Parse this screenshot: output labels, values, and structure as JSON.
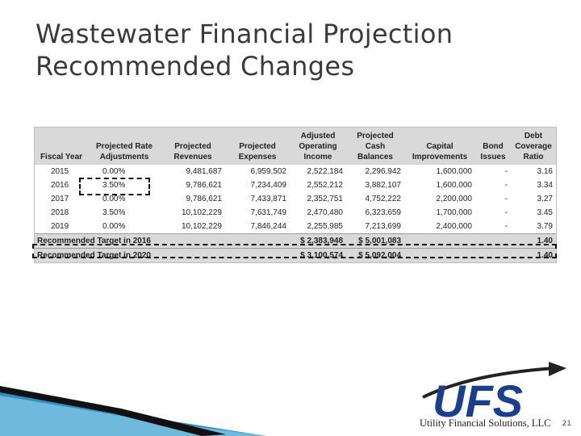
{
  "slide": {
    "title_line1": "Wastewater Financial Projection",
    "title_line2": "Recommended Changes",
    "page_number": "21"
  },
  "table": {
    "headers": [
      [
        "",
        "",
        "Fiscal Year"
      ],
      [
        "",
        "Projected Rate",
        "Adjustments"
      ],
      [
        "",
        "Projected",
        "Revenues"
      ],
      [
        "",
        "Projected",
        "Expenses"
      ],
      [
        "Adjusted",
        "Operating",
        "Income"
      ],
      [
        "Projected",
        "Cash",
        "Balances"
      ],
      [
        "",
        "Capital",
        "Improvements"
      ],
      [
        "",
        "Bond",
        "Issues"
      ],
      [
        "Debt",
        "Coverage",
        "Ratio"
      ]
    ],
    "rows": [
      [
        "2015",
        "0.00%",
        "9,481,687",
        "6,959,502",
        "2,522,184",
        "2,296,942",
        "1,600,000",
        "-",
        "3.16"
      ],
      [
        "2016",
        "3.50%",
        "9,786,621",
        "7,234,409",
        "2,552,212",
        "3,882,107",
        "1,600,000",
        "-",
        "3.34"
      ],
      [
        "2017",
        "0.00%",
        "9,786,621",
        "7,433,871",
        "2,352,751",
        "4,752,222",
        "2,200,000",
        "-",
        "3.27"
      ],
      [
        "2018",
        "3.50%",
        "10,102,229",
        "7,631,749",
        "2,470,480",
        "6,323,659",
        "1,700,000",
        "-",
        "3.45"
      ],
      [
        "2019",
        "0.00%",
        "10,102,229",
        "7,846,244",
        "2,255,985",
        "7,213,699",
        "2,400,000",
        "-",
        "3.79"
      ]
    ],
    "targets": [
      {
        "label": "Recommended Target in 2016",
        "income": "$ 2,383,948",
        "cash": "$ 5,001,083",
        "ratio": "1.40"
      },
      {
        "label": "Recommended Target in 2020",
        "income": "$ 3,100,574",
        "cash": "$ 5,092,004",
        "ratio": "1.40"
      }
    ]
  },
  "logo": {
    "letters": "UFS",
    "company": "Utility Financial Solutions, LLC"
  },
  "colors": {
    "header_bg": "#d9d9d9",
    "logo_blue": "#1a3f8f",
    "swoosh_blue": "#2f8fbf",
    "swoosh_black": "#111111"
  }
}
